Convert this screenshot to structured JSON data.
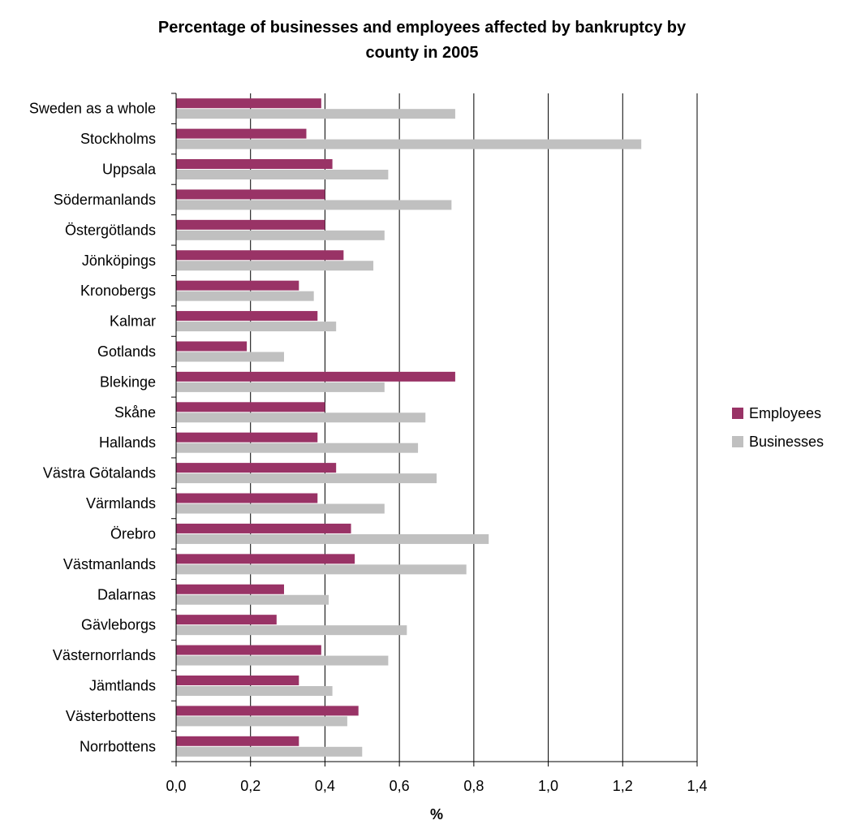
{
  "chart_data": {
    "type": "bar",
    "orientation": "horizontal",
    "title_lines": [
      "Percentage of businesses and employees affected by bankruptcy by",
      "county in 2005"
    ],
    "xlabel": "%",
    "ylabel": "",
    "xlim": [
      0,
      1.4
    ],
    "x_ticks": [
      "0,0",
      "0,2",
      "0,4",
      "0,6",
      "0,8",
      "1,0",
      "1,2",
      "1,4"
    ],
    "grid": "vertical",
    "legend_position": "right",
    "categories": [
      "Sweden as a whole",
      "Stockholms",
      "Uppsala",
      "Södermanlands",
      "Östergötlands",
      "Jönköpings",
      "Kronobergs",
      "Kalmar",
      "Gotlands",
      "Blekinge",
      "Skåne",
      "Hallands",
      "Västra Götalands",
      "Värmlands",
      "Örebro",
      "Västmanlands",
      "Dalarnas",
      "Gävleborgs",
      "Västernorrlands",
      "Jämtlands",
      "Västerbottens",
      "Norrbottens"
    ],
    "series": [
      {
        "name": "Employees",
        "color": "#993366",
        "values": [
          0.39,
          0.35,
          0.42,
          0.4,
          0.4,
          0.45,
          0.33,
          0.38,
          0.19,
          0.75,
          0.4,
          0.38,
          0.43,
          0.38,
          0.47,
          0.48,
          0.29,
          0.27,
          0.39,
          0.33,
          0.49,
          0.33
        ]
      },
      {
        "name": "Businesses",
        "color": "#c0c0c0",
        "values": [
          0.75,
          1.25,
          0.57,
          0.74,
          0.56,
          0.53,
          0.37,
          0.43,
          0.29,
          0.56,
          0.67,
          0.65,
          0.7,
          0.56,
          0.84,
          0.78,
          0.41,
          0.62,
          0.57,
          0.42,
          0.46,
          0.5
        ]
      }
    ]
  }
}
